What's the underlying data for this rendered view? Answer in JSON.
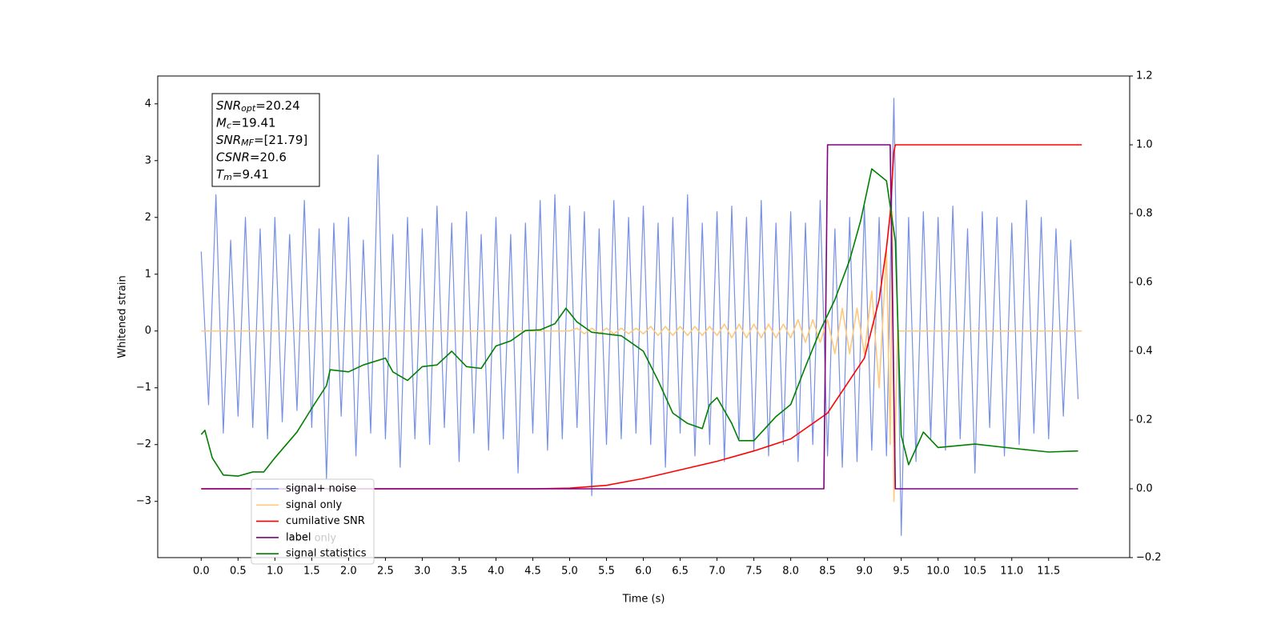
{
  "chart_data": {
    "type": "line",
    "xlabel": "Time (s)",
    "ylabel": "Whitened strain",
    "xlim": [
      -0.59,
      12.6
    ],
    "ylim": [
      -3.99,
      4.49
    ],
    "y2lim": [
      -0.2,
      1.2
    ],
    "xticks": [
      {
        "value": 0,
        "label": "0.0"
      },
      0.5,
      {
        "value": 1,
        "label": "1.0"
      },
      1.5,
      {
        "value": 2,
        "label": "2.0"
      },
      2.5,
      {
        "value": 3,
        "label": "3.0"
      },
      3.5,
      {
        "value": 4,
        "label": "4.0"
      },
      4.5,
      {
        "value": 5,
        "label": "5.0"
      },
      5.5,
      {
        "value": 6,
        "label": "6.0"
      },
      6.5,
      {
        "value": 7,
        "label": "7.0"
      },
      7.5,
      {
        "value": 8,
        "label": "8.0"
      },
      8.5,
      {
        "value": 9,
        "label": "9.0"
      },
      9.5,
      {
        "value": 10,
        "label": "10.0"
      },
      10.5,
      {
        "value": 11,
        "label": "11.0"
      },
      11.5
    ],
    "yticks": [
      {
        "value": -3,
        "label": "−3"
      },
      {
        "value": -2,
        "label": "−2"
      },
      {
        "value": -1,
        "label": "−1"
      },
      0,
      1,
      2,
      3,
      4
    ],
    "y2ticks": [
      {
        "value": -0.2,
        "label": "−0.2"
      },
      {
        "value": 0,
        "label": "0.0"
      },
      0.2,
      0.4,
      0.6,
      0.8,
      {
        "value": 1,
        "label": "1.0"
      },
      1.2
    ],
    "annotation_lines": [
      {
        "text": "SNR",
        "sub": "opt",
        "rest": "=20.24"
      },
      {
        "text": "M",
        "sub": "c",
        "rest": "=19.41"
      },
      {
        "text": "SNR",
        "sub": "MF",
        "rest": "=[21.79]"
      },
      {
        "text": "CSNR",
        "rest": "=20.6"
      },
      {
        "text": "T",
        "sub": "m",
        "rest": "=9.41"
      }
    ],
    "legend_ghost_text": "label only",
    "series": [
      {
        "name": "signal+ noise",
        "color": "#7690e6",
        "x": [
          0.0,
          0.1,
          0.2,
          0.3,
          0.4,
          0.5,
          0.6,
          0.7,
          0.8,
          0.9,
          1.0,
          1.1,
          1.2,
          1.3,
          1.4,
          1.5,
          1.6,
          1.7,
          1.8,
          1.9,
          2.0,
          2.1,
          2.2,
          2.3,
          2.4,
          2.5,
          2.6,
          2.7,
          2.8,
          2.9,
          3.0,
          3.1,
          3.2,
          3.3,
          3.4,
          3.5,
          3.6,
          3.7,
          3.8,
          3.9,
          4.0,
          4.1,
          4.2,
          4.3,
          4.4,
          4.5,
          4.6,
          4.7,
          4.8,
          4.9,
          5.0,
          5.1,
          5.2,
          5.3,
          5.4,
          5.5,
          5.6,
          5.7,
          5.8,
          5.9,
          6.0,
          6.1,
          6.2,
          6.3,
          6.4,
          6.5,
          6.6,
          6.7,
          6.8,
          6.9,
          7.0,
          7.1,
          7.2,
          7.3,
          7.4,
          7.5,
          7.6,
          7.7,
          7.8,
          7.9,
          8.0,
          8.1,
          8.2,
          8.3,
          8.4,
          8.5,
          8.6,
          8.7,
          8.8,
          8.9,
          9.0,
          9.1,
          9.2,
          9.3,
          9.4,
          9.5,
          9.6,
          9.7,
          9.8,
          9.9,
          10.0,
          10.1,
          10.2,
          10.3,
          10.4,
          10.5,
          10.6,
          10.7,
          10.8,
          10.9,
          11.0,
          11.1,
          11.2,
          11.3,
          11.4,
          11.5,
          11.6,
          11.7,
          11.8,
          11.9
        ],
        "values": [
          1.4,
          -1.3,
          2.4,
          -1.8,
          1.6,
          -1.5,
          2.0,
          -1.7,
          1.8,
          -1.9,
          2.0,
          -1.6,
          1.7,
          -1.4,
          2.3,
          -1.7,
          1.8,
          -2.6,
          1.9,
          -1.5,
          2.0,
          -2.2,
          1.6,
          -1.8,
          3.1,
          -1.9,
          1.7,
          -2.4,
          2.0,
          -1.9,
          1.8,
          -2.0,
          2.2,
          -1.7,
          1.9,
          -2.3,
          2.1,
          -1.8,
          1.7,
          -2.1,
          2.0,
          -1.9,
          1.7,
          -2.5,
          1.9,
          -1.8,
          2.3,
          -2.1,
          2.4,
          -1.9,
          2.2,
          -1.7,
          2.1,
          -2.9,
          1.8,
          -2.0,
          2.3,
          -1.9,
          2.0,
          -1.8,
          2.2,
          -2.0,
          1.9,
          -2.4,
          2.0,
          -1.8,
          2.4,
          -2.2,
          1.9,
          -2.0,
          2.1,
          -2.3,
          2.2,
          -1.9,
          2.0,
          -2.1,
          2.3,
          -2.2,
          1.9,
          -2.0,
          2.1,
          -2.3,
          1.9,
          -2.0,
          2.3,
          -2.2,
          1.8,
          -2.4,
          2.0,
          -2.3,
          2.2,
          -2.1,
          2.0,
          -2.2,
          4.1,
          -3.6,
          2.0,
          -2.3,
          2.1,
          -1.9,
          2.0,
          -2.1,
          2.2,
          -1.9,
          1.8,
          -2.5,
          2.1,
          -1.7,
          2.0,
          -2.2,
          1.9,
          -2.0,
          2.3,
          -1.8,
          2.0,
          -1.9,
          1.8,
          -1.5,
          1.6,
          -1.2
        ]
      },
      {
        "name": "signal only",
        "color": "#ffc979",
        "x": [
          0.0,
          5.0,
          5.1,
          5.2,
          5.3,
          5.4,
          5.5,
          5.6,
          5.7,
          5.8,
          5.9,
          6.0,
          6.1,
          6.2,
          6.3,
          6.4,
          6.5,
          6.6,
          6.7,
          6.8,
          6.9,
          7.0,
          7.1,
          7.2,
          7.3,
          7.4,
          7.5,
          7.6,
          7.7,
          7.8,
          7.9,
          8.0,
          8.1,
          8.2,
          8.3,
          8.4,
          8.5,
          8.6,
          8.7,
          8.8,
          8.9,
          9.0,
          9.1,
          9.2,
          9.3,
          9.35,
          9.38,
          9.4,
          9.45,
          11.95
        ],
        "values": [
          0,
          0,
          0.05,
          -0.05,
          0.05,
          -0.05,
          0.05,
          -0.05,
          0.05,
          -0.05,
          0.05,
          -0.05,
          0.08,
          -0.08,
          0.08,
          -0.08,
          0.08,
          -0.08,
          0.08,
          -0.08,
          0.08,
          -0.08,
          0.12,
          -0.12,
          0.12,
          -0.12,
          0.12,
          -0.12,
          0.12,
          -0.12,
          0.12,
          -0.12,
          0.2,
          -0.2,
          0.2,
          -0.2,
          0.2,
          -0.4,
          0.4,
          -0.4,
          0.4,
          -0.4,
          0.7,
          -1.0,
          1.4,
          -2.0,
          2.1,
          -3.0,
          0,
          0
        ]
      },
      {
        "name": "cumilative SNR",
        "color": "#ff0000",
        "axis": "y2",
        "x": [
          0.0,
          4.5,
          5.0,
          5.5,
          6.0,
          6.5,
          7.0,
          7.5,
          8.0,
          8.5,
          9.0,
          9.2,
          9.3,
          9.35,
          9.4,
          9.42,
          11.95
        ],
        "values": [
          0,
          0,
          0.002,
          0.01,
          0.03,
          0.055,
          0.08,
          0.11,
          0.145,
          0.22,
          0.38,
          0.55,
          0.7,
          0.8,
          0.98,
          1.0,
          1.0
        ]
      },
      {
        "name": "label",
        "color": "#800080",
        "axis": "y2",
        "x": [
          0.0,
          8.45,
          8.5,
          9.35,
          9.42,
          11.9
        ],
        "values": [
          0,
          0,
          1,
          1,
          0,
          0
        ]
      },
      {
        "name": "signal statistics",
        "color": "#008000",
        "axis": "y2",
        "x": [
          0.0,
          0.05,
          0.15,
          0.3,
          0.5,
          0.7,
          0.85,
          1.0,
          1.2,
          1.3,
          1.5,
          1.7,
          1.75,
          2.0,
          2.2,
          2.5,
          2.6,
          2.8,
          3.0,
          3.2,
          3.4,
          3.6,
          3.8,
          4.0,
          4.2,
          4.4,
          4.6,
          4.8,
          4.95,
          5.1,
          5.3,
          5.5,
          5.7,
          5.9,
          6.0,
          6.2,
          6.4,
          6.6,
          6.8,
          6.9,
          7.0,
          7.2,
          7.3,
          7.5,
          7.8,
          8.0,
          8.2,
          8.4,
          8.6,
          8.8,
          8.95,
          9.1,
          9.3,
          9.42,
          9.5,
          9.6,
          9.8,
          10.0,
          10.5,
          11.0,
          11.5,
          11.9
        ],
        "values": [
          0.158,
          0.17,
          0.09,
          0.04,
          0.037,
          0.049,
          0.049,
          0.09,
          0.14,
          0.165,
          0.234,
          0.3,
          0.346,
          0.34,
          0.36,
          0.38,
          0.34,
          0.315,
          0.355,
          0.36,
          0.4,
          0.355,
          0.35,
          0.415,
          0.43,
          0.46,
          0.462,
          0.48,
          0.525,
          0.485,
          0.455,
          0.45,
          0.445,
          0.415,
          0.4,
          0.315,
          0.22,
          0.19,
          0.175,
          0.245,
          0.265,
          0.19,
          0.14,
          0.14,
          0.21,
          0.245,
          0.355,
          0.46,
          0.55,
          0.665,
          0.78,
          0.93,
          0.895,
          0.72,
          0.155,
          0.07,
          0.165,
          0.12,
          0.13,
          0.118,
          0.107,
          0.11
        ]
      }
    ]
  }
}
